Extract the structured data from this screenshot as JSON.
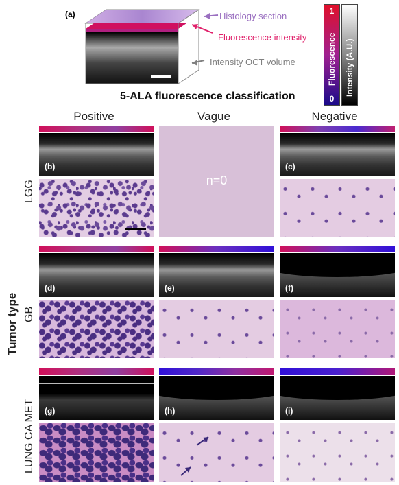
{
  "figure": {
    "panel_a_label": "(a)",
    "schematic": {
      "histology_label": "Histology section",
      "fluorescence_label": "Fluorescence intensity",
      "oct_label": "Intensity OCT volume"
    },
    "colorbars": {
      "fluorescence": {
        "title": "Fluorescence",
        "min": "0",
        "max": "1",
        "top_color": "#e0102a",
        "bottom_color": "#1a0a8a"
      },
      "intensity": {
        "title": "Intensity (A.U.)"
      }
    },
    "classification_title": "5-ALA fluorescence classification",
    "columns": [
      "Positive",
      "Vague",
      "Negative"
    ],
    "side_label": "Tumor type",
    "rows": [
      {
        "label": "LGG",
        "panels": [
          "(b)",
          "",
          "(c)"
        ],
        "empty_text": "n=0"
      },
      {
        "label": "GB",
        "panels": [
          "(d)",
          "(e)",
          "(f)"
        ]
      },
      {
        "label": "LUNG CA MET",
        "panels": [
          "(g)",
          "(h)",
          "(i)"
        ]
      }
    ],
    "colors": {
      "histology_label": "#9a6fc0",
      "fluorescence_label": "#e0206a",
      "oct_label": "#808080",
      "empty_panel": "#d8c0d8"
    }
  }
}
